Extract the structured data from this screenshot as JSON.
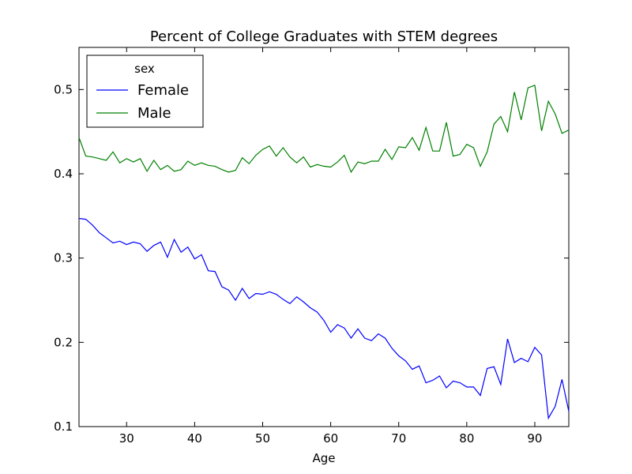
{
  "chart_data": {
    "type": "line",
    "title": "Percent of College Graduates with STEM degrees",
    "xlabel": "Age",
    "ylabel": "",
    "xlim": [
      23,
      95
    ],
    "ylim": [
      0.1,
      0.55
    ],
    "xticks": [
      30,
      40,
      50,
      60,
      70,
      80,
      90
    ],
    "xtick_labels": [
      "30",
      "40",
      "50",
      "60",
      "70",
      "80",
      "90"
    ],
    "yticks": [
      0.1,
      0.2,
      0.3,
      0.4,
      0.5
    ],
    "ytick_labels": [
      "0.1",
      "0.2",
      "0.3",
      "0.4",
      "0.5"
    ],
    "grid": false,
    "legend": {
      "title": "sex",
      "placement": "top-left"
    },
    "x": [
      23,
      24,
      25,
      26,
      27,
      28,
      29,
      30,
      31,
      32,
      33,
      34,
      35,
      36,
      37,
      38,
      39,
      40,
      41,
      42,
      43,
      44,
      45,
      46,
      47,
      48,
      49,
      50,
      51,
      52,
      53,
      54,
      55,
      56,
      57,
      58,
      59,
      60,
      61,
      62,
      63,
      64,
      65,
      66,
      67,
      68,
      69,
      70,
      71,
      72,
      73,
      74,
      75,
      76,
      77,
      78,
      79,
      80,
      81,
      82,
      83,
      84,
      85,
      86,
      87,
      88,
      89,
      90,
      91,
      92,
      93,
      94,
      95
    ],
    "series": [
      {
        "name": "Female",
        "color": "#0000ff",
        "values": [
          0.347,
          0.346,
          0.339,
          0.33,
          0.324,
          0.318,
          0.32,
          0.316,
          0.319,
          0.317,
          0.308,
          0.315,
          0.319,
          0.301,
          0.322,
          0.307,
          0.313,
          0.299,
          0.304,
          0.285,
          0.284,
          0.266,
          0.262,
          0.25,
          0.264,
          0.252,
          0.258,
          0.257,
          0.26,
          0.257,
          0.251,
          0.246,
          0.254,
          0.248,
          0.241,
          0.236,
          0.226,
          0.212,
          0.221,
          0.217,
          0.205,
          0.216,
          0.205,
          0.202,
          0.21,
          0.205,
          0.193,
          0.184,
          0.178,
          0.168,
          0.172,
          0.152,
          0.155,
          0.16,
          0.146,
          0.154,
          0.152,
          0.147,
          0.147,
          0.137,
          0.169,
          0.171,
          0.15,
          0.204,
          0.176,
          0.181,
          0.177,
          0.194,
          0.185,
          0.11,
          0.124,
          0.156,
          0.118
        ]
      },
      {
        "name": "Male",
        "color": "#008000",
        "values": [
          0.443,
          0.421,
          0.42,
          0.418,
          0.416,
          0.426,
          0.413,
          0.418,
          0.414,
          0.418,
          0.403,
          0.416,
          0.405,
          0.41,
          0.403,
          0.405,
          0.415,
          0.41,
          0.413,
          0.41,
          0.409,
          0.405,
          0.402,
          0.404,
          0.419,
          0.412,
          0.422,
          0.429,
          0.433,
          0.421,
          0.431,
          0.42,
          0.413,
          0.42,
          0.408,
          0.411,
          0.409,
          0.408,
          0.414,
          0.422,
          0.402,
          0.414,
          0.412,
          0.415,
          0.415,
          0.429,
          0.417,
          0.432,
          0.431,
          0.443,
          0.428,
          0.455,
          0.427,
          0.427,
          0.461,
          0.421,
          0.423,
          0.435,
          0.431,
          0.409,
          0.426,
          0.459,
          0.468,
          0.45,
          0.497,
          0.464,
          0.502,
          0.505,
          0.451,
          0.486,
          0.471,
          0.448,
          0.452
        ]
      }
    ]
  }
}
